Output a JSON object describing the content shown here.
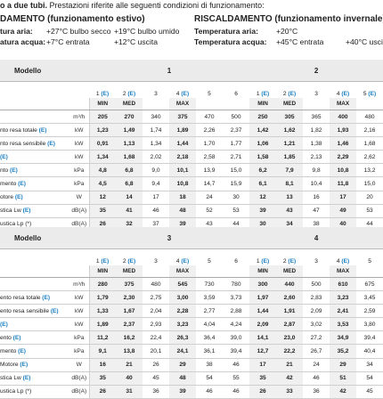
{
  "intro": {
    "bold": "o a due tubi.",
    "rest": " Prestazioni riferite alle seguenti condizioni di funzionamento:"
  },
  "summer": {
    "title": "DAMENTO (funzionamento estivo)",
    "air_label": "tura aria:",
    "air_v1": "+27°C bulbo secco",
    "air_v2": "+19°C bulbo umido",
    "water_label": "atura acqua:",
    "water_v1": "+7°C entrata",
    "water_v2": "+12°C uscita"
  },
  "winter": {
    "title": "RISCALDAMENTO (funzionamento invernale)",
    "air_label": "Temperatura aria:",
    "air_v1": "+20°C",
    "water_label": "Temperatura acqua:",
    "water_v1": "+45°C entrata",
    "water_v2": "+40°C uscita"
  },
  "tables": [
    {
      "model_label": "Modello",
      "models": [
        "1",
        "2"
      ],
      "speeds": [
        "1 (E)",
        "2 (E)",
        "3",
        "4 (E)",
        "5",
        "6",
        "1 (E)",
        "2 (E)",
        "3",
        "4 (E)",
        "5 (E)"
      ],
      "levels": [
        "MIN",
        "MED",
        "",
        "MAX",
        "",
        "",
        "MIN",
        "MED",
        "",
        "MAX",
        ""
      ],
      "rows": [
        {
          "label": "",
          "unit": "m³/h",
          "values": [
            "205",
            "270",
            "340",
            "375",
            "470",
            "500",
            "250",
            "305",
            "365",
            "400",
            "480"
          ]
        },
        {
          "label": "nto resa totale (E)",
          "unit": "kW",
          "values": [
            "1,23",
            "1,49",
            "1,74",
            "1,89",
            "2,26",
            "2,37",
            "1,42",
            "1,62",
            "1,82",
            "1,93",
            "2,16"
          ]
        },
        {
          "label": "nto resa sensibile (E)",
          "unit": "kW",
          "values": [
            "0,91",
            "1,13",
            "1,34",
            "1,44",
            "1,70",
            "1,77",
            "1,06",
            "1,21",
            "1,38",
            "1,46",
            "1,68"
          ]
        },
        {
          "label": "(E)",
          "unit": "kW",
          "values": [
            "1,34",
            "1,68",
            "2,02",
            "2,18",
            "2,58",
            "2,71",
            "1,58",
            "1,85",
            "2,13",
            "2,29",
            "2,62"
          ]
        },
        {
          "label": "nto (E)",
          "unit": "kPa",
          "values": [
            "4,8",
            "6,8",
            "9,0",
            "10,1",
            "13,9",
            "15,0",
            "6,2",
            "7,9",
            "9,8",
            "10,8",
            "13,2"
          ]
        },
        {
          "label": "mento (E)",
          "unit": "kPa",
          "values": [
            "4,5",
            "6,8",
            "9,4",
            "10,8",
            "14,7",
            "15,9",
            "6,1",
            "8,1",
            "10,4",
            "11,8",
            "15,0"
          ]
        },
        {
          "label": "otore (E)",
          "unit": "W",
          "values": [
            "12",
            "14",
            "17",
            "18",
            "24",
            "30",
            "12",
            "13",
            "16",
            "17",
            "20"
          ]
        },
        {
          "label": "stica Lw (E)",
          "unit": "dB(A)",
          "values": [
            "35",
            "41",
            "46",
            "48",
            "52",
            "53",
            "39",
            "43",
            "47",
            "49",
            "53"
          ]
        },
        {
          "label": "ustica Lp (*)",
          "unit": "dB(A)",
          "values": [
            "26",
            "32",
            "37",
            "39",
            "43",
            "44",
            "30",
            "34",
            "38",
            "40",
            "44"
          ]
        }
      ]
    },
    {
      "model_label": "Modello",
      "models": [
        "3",
        "4"
      ],
      "speeds": [
        "1 (E)",
        "2 (E)",
        "3",
        "4 (E)",
        "5",
        "6",
        "1 (E)",
        "2 (E)",
        "3",
        "4 (E)",
        "5"
      ],
      "levels": [
        "MIN",
        "MED",
        "",
        "MAX",
        "",
        "",
        "MIN",
        "MED",
        "",
        "MAX",
        ""
      ],
      "rows": [
        {
          "label": "",
          "unit": "m³/h",
          "values": [
            "280",
            "375",
            "480",
            "545",
            "730",
            "780",
            "300",
            "440",
            "500",
            "610",
            "675"
          ]
        },
        {
          "label": "ento resa totale (E)",
          "unit": "kW",
          "values": [
            "1,79",
            "2,30",
            "2,75",
            "3,00",
            "3,59",
            "3,73",
            "1,97",
            "2,60",
            "2,83",
            "3,23",
            "3,45"
          ]
        },
        {
          "label": "ento resa sensibile (E)",
          "unit": "kW",
          "values": [
            "1,33",
            "1,67",
            "2,04",
            "2,28",
            "2,77",
            "2,88",
            "1,44",
            "1,91",
            "2,09",
            "2,41",
            "2,59"
          ]
        },
        {
          "label": "(E)",
          "unit": "kW",
          "values": [
            "1,89",
            "2,37",
            "2,93",
            "3,23",
            "4,04",
            "4,24",
            "2,09",
            "2,87",
            "3,02",
            "3,53",
            "3,80"
          ]
        },
        {
          "label": "ento (E)",
          "unit": "kPa",
          "values": [
            "11,2",
            "16,2",
            "22,4",
            "26,3",
            "36,4",
            "39,0",
            "14,1",
            "23,0",
            "27,2",
            "34,9",
            "39,4"
          ]
        },
        {
          "label": "mento (E)",
          "unit": "kPa",
          "values": [
            "9,1",
            "13,8",
            "20,1",
            "24,1",
            "36,1",
            "39,4",
            "12,7",
            "22,2",
            "26,7",
            "35,2",
            "40,4"
          ]
        },
        {
          "label": "Motore (E)",
          "unit": "W",
          "values": [
            "16",
            "21",
            "26",
            "29",
            "38",
            "46",
            "17",
            "21",
            "24",
            "29",
            "34"
          ]
        },
        {
          "label": "stica Lw (E)",
          "unit": "dB(A)",
          "values": [
            "35",
            "40",
            "45",
            "48",
            "54",
            "55",
            "35",
            "42",
            "46",
            "51",
            "54"
          ]
        },
        {
          "label": "ustica Lp (*)",
          "unit": "dB(A)",
          "values": [
            "26",
            "31",
            "36",
            "39",
            "46",
            "46",
            "26",
            "33",
            "36",
            "42",
            "45"
          ]
        }
      ]
    }
  ]
}
